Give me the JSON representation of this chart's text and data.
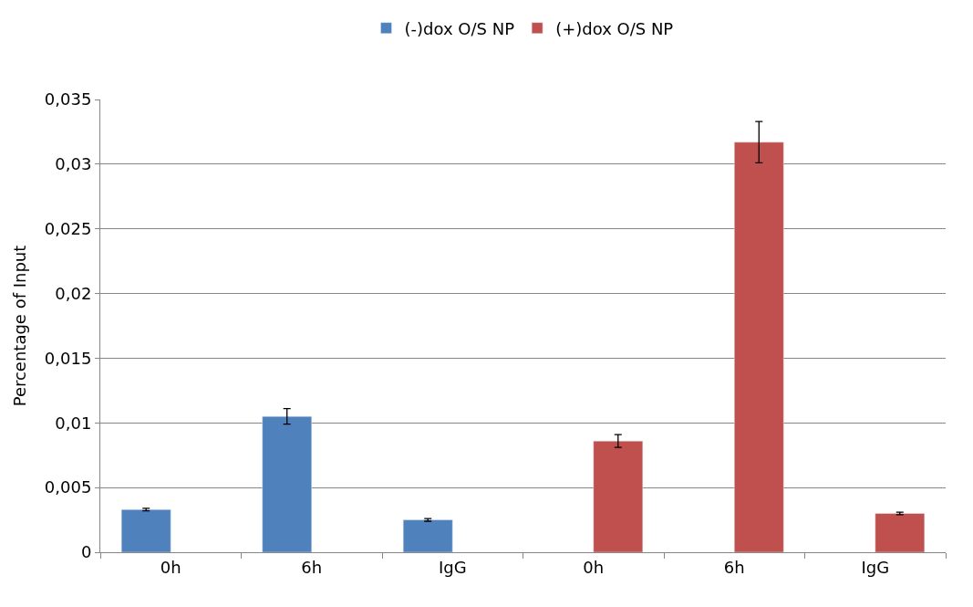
{
  "chart_data": {
    "type": "bar",
    "ylabel": "Percentage of Input",
    "categories": [
      "0h",
      "6h",
      "IgG",
      "0h",
      "6h",
      "IgG"
    ],
    "series": [
      {
        "name": "(-)dox O/S NP",
        "color": "#4f81bd",
        "values": [
          0.0033,
          0.0105,
          0.0025,
          null,
          null,
          null
        ],
        "errors": [
          0.0001,
          0.0006,
          0.0001,
          null,
          null,
          null
        ]
      },
      {
        "name": "(+)dox O/S NP",
        "color": "#c0504d",
        "values": [
          null,
          null,
          null,
          0.0086,
          0.0317,
          0.003
        ],
        "errors": [
          null,
          null,
          null,
          0.0005,
          0.0016,
          0.0001
        ]
      }
    ],
    "ylim": [
      0,
      0.035
    ],
    "yticks": [
      {
        "value": 0,
        "label": "0"
      },
      {
        "value": 0.005,
        "label": "0,005"
      },
      {
        "value": 0.01,
        "label": "0,01"
      },
      {
        "value": 0.015,
        "label": "0,015"
      },
      {
        "value": 0.02,
        "label": "0,02"
      },
      {
        "value": 0.025,
        "label": "0,025"
      },
      {
        "value": 0.03,
        "label": "0,03"
      },
      {
        "value": 0.035,
        "label": "0,035"
      }
    ],
    "grid": "y",
    "legend": "top"
  }
}
